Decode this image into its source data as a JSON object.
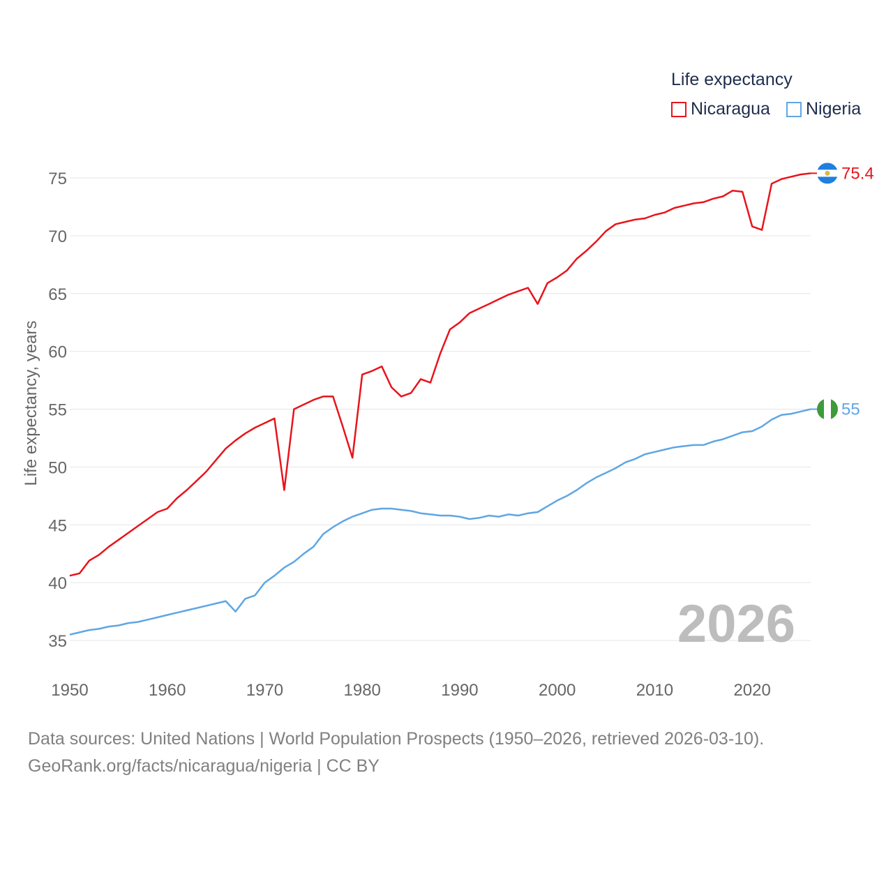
{
  "legend": {
    "title": "Life expectancy",
    "items": [
      {
        "name": "Nicaragua",
        "color": "#e8141b"
      },
      {
        "name": "Nigeria",
        "color": "#5fa6e3"
      }
    ]
  },
  "footer": {
    "line1": "Data sources: United Nations | World Population Prospects (1950–2026, retrieved 2026-03-10).",
    "line2": "GeoRank.org/facts/nicaragua/nigeria | CC BY"
  },
  "chart_data": {
    "type": "line",
    "title": "Life expectancy",
    "xlabel": "",
    "ylabel": "Life expectancy, years",
    "xlim": [
      1950,
      2026
    ],
    "ylim": [
      35,
      75
    ],
    "xticks": [
      1950,
      1960,
      1970,
      1980,
      1990,
      2000,
      2010,
      2020
    ],
    "yticks": [
      35,
      40,
      45,
      50,
      55,
      60,
      65,
      70,
      75
    ],
    "grid": true,
    "year_label": "2026",
    "x": [
      1950,
      1951,
      1952,
      1953,
      1954,
      1955,
      1956,
      1957,
      1958,
      1959,
      1960,
      1961,
      1962,
      1963,
      1964,
      1965,
      1966,
      1967,
      1968,
      1969,
      1970,
      1971,
      1972,
      1973,
      1974,
      1975,
      1976,
      1977,
      1978,
      1979,
      1980,
      1981,
      1982,
      1983,
      1984,
      1985,
      1986,
      1987,
      1988,
      1989,
      1990,
      1991,
      1992,
      1993,
      1994,
      1995,
      1996,
      1997,
      1998,
      1999,
      2000,
      2001,
      2002,
      2003,
      2004,
      2005,
      2006,
      2007,
      2008,
      2009,
      2010,
      2011,
      2012,
      2013,
      2014,
      2015,
      2016,
      2017,
      2018,
      2019,
      2020,
      2021,
      2022,
      2023,
      2024,
      2025,
      2026
    ],
    "series": [
      {
        "name": "Nicaragua",
        "color": "#e8141b",
        "end_label": "75.4",
        "values": [
          40.6,
          40.8,
          41.9,
          42.4,
          43.1,
          43.7,
          44.3,
          44.9,
          45.5,
          46.1,
          46.4,
          47.3,
          48.0,
          48.8,
          49.6,
          50.6,
          51.6,
          52.3,
          52.9,
          53.4,
          53.8,
          54.2,
          48.0,
          55.0,
          55.4,
          55.8,
          56.1,
          56.1,
          53.5,
          50.8,
          58.0,
          58.3,
          58.7,
          56.9,
          56.1,
          56.4,
          57.6,
          57.3,
          59.8,
          61.9,
          62.5,
          63.3,
          63.7,
          64.1,
          64.5,
          64.9,
          65.2,
          65.5,
          64.1,
          65.9,
          66.4,
          67.0,
          68.0,
          68.7,
          69.5,
          70.4,
          71.0,
          71.2,
          71.4,
          71.5,
          71.8,
          72.0,
          72.4,
          72.6,
          72.8,
          72.9,
          73.2,
          73.4,
          73.9,
          73.8,
          70.8,
          70.5,
          74.5,
          74.9,
          75.1,
          75.3,
          75.4
        ]
      },
      {
        "name": "Nigeria",
        "color": "#5fa6e3",
        "end_label": "55",
        "values": [
          35.5,
          35.7,
          35.9,
          36.0,
          36.2,
          36.3,
          36.5,
          36.6,
          36.8,
          37.0,
          37.2,
          37.4,
          37.6,
          37.8,
          38.0,
          38.2,
          38.4,
          37.5,
          38.6,
          38.9,
          40.0,
          40.6,
          41.3,
          41.8,
          42.5,
          43.1,
          44.2,
          44.8,
          45.3,
          45.7,
          46.0,
          46.3,
          46.4,
          46.4,
          46.3,
          46.2,
          46.0,
          45.9,
          45.8,
          45.8,
          45.7,
          45.5,
          45.6,
          45.8,
          45.7,
          45.9,
          45.8,
          46.0,
          46.1,
          46.6,
          47.1,
          47.5,
          48.0,
          48.6,
          49.1,
          49.5,
          49.9,
          50.4,
          50.7,
          51.1,
          51.3,
          51.5,
          51.7,
          51.8,
          51.9,
          51.9,
          52.2,
          52.4,
          52.7,
          53.0,
          53.1,
          53.5,
          54.1,
          54.5,
          54.6,
          54.8,
          55.0
        ]
      }
    ]
  }
}
